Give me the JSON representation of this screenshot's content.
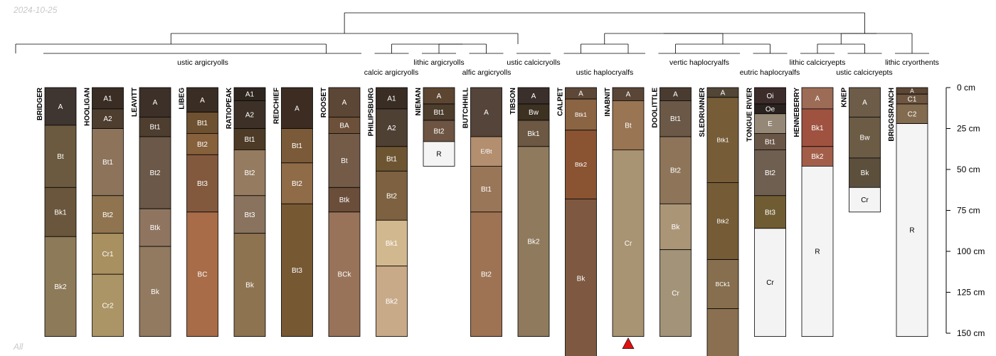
{
  "date": "2024-10-25",
  "footer": "All",
  "chart_data": {
    "type": "soil-profile-sketch",
    "y_axis": {
      "unit": "cm",
      "ticks": [
        0,
        25,
        50,
        75,
        100,
        125,
        150
      ],
      "tick_labels": [
        "0 cm",
        "25 cm",
        "50 cm",
        "75 cm",
        "100 cm",
        "125 cm",
        "150 cm"
      ]
    },
    "profiles": [
      {
        "name": "BRIDGER",
        "group": "ustic argicryolls",
        "horizons": [
          {
            "name": "A",
            "top": 0,
            "bottom": 23,
            "color": "#3f3531"
          },
          {
            "name": "Bt",
            "top": 23,
            "bottom": 61,
            "color": "#6c5a40"
          },
          {
            "name": "Bk1",
            "top": 61,
            "bottom": 91,
            "color": "#6a563c"
          },
          {
            "name": "Bk2",
            "top": 91,
            "bottom": 152,
            "color": "#8d7a59"
          }
        ]
      },
      {
        "name": "HOOLIGAN",
        "group": "ustic argicryolls",
        "horizons": [
          {
            "name": "A1",
            "top": 0,
            "bottom": 13,
            "color": "#3a2d24"
          },
          {
            "name": "A2",
            "top": 13,
            "bottom": 25,
            "color": "#4e3e30"
          },
          {
            "name": "Bt1",
            "top": 25,
            "bottom": 66,
            "color": "#8c735a"
          },
          {
            "name": "Bt2",
            "top": 66,
            "bottom": 89,
            "color": "#8f744f"
          },
          {
            "name": "Cr1",
            "top": 89,
            "bottom": 114,
            "color": "#a99060"
          },
          {
            "name": "Cr2",
            "top": 114,
            "bottom": 152,
            "color": "#ab9566"
          }
        ]
      },
      {
        "name": "LEAVITT",
        "group": "ustic argicryolls",
        "horizons": [
          {
            "name": "A",
            "top": 0,
            "bottom": 18,
            "color": "#3c3028"
          },
          {
            "name": "Bt1",
            "top": 18,
            "bottom": 30,
            "color": "#4e3e30"
          },
          {
            "name": "Bt2",
            "top": 30,
            "bottom": 74,
            "color": "#6b5848"
          },
          {
            "name": "Btk",
            "top": 74,
            "bottom": 97,
            "color": "#8f7560"
          },
          {
            "name": "Bk",
            "top": 97,
            "bottom": 152,
            "color": "#927a61"
          }
        ]
      },
      {
        "name": "LIBEG",
        "group": "ustic argicryolls",
        "horizons": [
          {
            "name": "A",
            "top": 0,
            "bottom": 15,
            "color": "#3a2d24"
          },
          {
            "name": "Bt1",
            "top": 15,
            "bottom": 28,
            "color": "#6e5131"
          },
          {
            "name": "Bt2",
            "top": 28,
            "bottom": 41,
            "color": "#87603c"
          },
          {
            "name": "Bt3",
            "top": 41,
            "bottom": 76,
            "color": "#83593e"
          },
          {
            "name": "BC",
            "top": 76,
            "bottom": 152,
            "color": "#a86c48"
          }
        ]
      },
      {
        "name": "RATIOPEAK",
        "group": "ustic argicryolls",
        "horizons": [
          {
            "name": "A1",
            "top": 0,
            "bottom": 8,
            "color": "#2f2620"
          },
          {
            "name": "A2",
            "top": 8,
            "bottom": 25,
            "color": "#3d3127"
          },
          {
            "name": "Bt1",
            "top": 25,
            "bottom": 38,
            "color": "#4d3b27"
          },
          {
            "name": "Bt2",
            "top": 38,
            "bottom": 66,
            "color": "#957b60"
          },
          {
            "name": "Bt3",
            "top": 66,
            "bottom": 89,
            "color": "#89735e"
          },
          {
            "name": "Bk",
            "top": 89,
            "bottom": 152,
            "color": "#8d7350"
          }
        ]
      },
      {
        "name": "REDCHIEF",
        "group": "ustic argicryolls",
        "horizons": [
          {
            "name": "A",
            "top": 0,
            "bottom": 25,
            "color": "#3c2c22"
          },
          {
            "name": "Bt1",
            "top": 25,
            "bottom": 46,
            "color": "#7a5a38"
          },
          {
            "name": "Bt2",
            "top": 46,
            "bottom": 71,
            "color": "#8f6b48"
          },
          {
            "name": "Bt3",
            "top": 71,
            "bottom": 152,
            "color": "#765833"
          }
        ]
      },
      {
        "name": "ROOSET",
        "group": "ustic argicryolls",
        "horizons": [
          {
            "name": "A",
            "top": 0,
            "bottom": 18,
            "color": "#5c4635"
          },
          {
            "name": "BA",
            "top": 18,
            "bottom": 28,
            "color": "#6c5039"
          },
          {
            "name": "Bt",
            "top": 28,
            "bottom": 61,
            "color": "#735b48"
          },
          {
            "name": "Btk",
            "top": 61,
            "bottom": 76,
            "color": "#6a4e3a"
          },
          {
            "name": "BCk",
            "top": 76,
            "bottom": 152,
            "color": "#98735a"
          }
        ]
      },
      {
        "name": "PHILIPSBURG",
        "group": "calcic argicryolls",
        "horizons": [
          {
            "name": "A1",
            "top": 0,
            "bottom": 13,
            "color": "#3a2d24"
          },
          {
            "name": "A2",
            "top": 13,
            "bottom": 36,
            "color": "#4e4033"
          },
          {
            "name": "Bt1",
            "top": 36,
            "bottom": 51,
            "color": "#6e5532"
          },
          {
            "name": "Bt2",
            "top": 51,
            "bottom": 81,
            "color": "#7d6140"
          },
          {
            "name": "Bk1",
            "top": 81,
            "bottom": 109,
            "color": "#d2b88f"
          },
          {
            "name": "Bk2",
            "top": 109,
            "bottom": 152,
            "color": "#c8aa88"
          }
        ]
      },
      {
        "name": "NIEMAN",
        "group": "lithic argicryolls",
        "horizons": [
          {
            "name": "A",
            "top": 0,
            "bottom": 10,
            "color": "#5c4632"
          },
          {
            "name": "Bt1",
            "top": 10,
            "bottom": 20,
            "color": "#4d3d2d"
          },
          {
            "name": "Bt2",
            "top": 20,
            "bottom": 33,
            "color": "#6e5442"
          },
          {
            "name": "R",
            "top": 33,
            "bottom": 48,
            "color": "#f4f4f4"
          }
        ]
      },
      {
        "name": "BUTCHHILL",
        "group": "alfic argicryolls",
        "horizons": [
          {
            "name": "A",
            "top": 0,
            "bottom": 30,
            "color": "#54443a"
          },
          {
            "name": "E/Bt",
            "top": 30,
            "bottom": 48,
            "color": "#b38e6f"
          },
          {
            "name": "Bt1",
            "top": 48,
            "bottom": 76,
            "color": "#9a7658"
          },
          {
            "name": "Bt2",
            "top": 76,
            "bottom": 152,
            "color": "#9d7353"
          }
        ]
      },
      {
        "name": "TIBSON",
        "group": "ustic calcicryolls",
        "horizons": [
          {
            "name": "A",
            "top": 0,
            "bottom": 10,
            "color": "#3a2f2a"
          },
          {
            "name": "Bw",
            "top": 10,
            "bottom": 20,
            "color": "#3d3122"
          },
          {
            "name": "Bk1",
            "top": 20,
            "bottom": 36,
            "color": "#6c5843"
          },
          {
            "name": "Bk2",
            "top": 36,
            "bottom": 152,
            "color": "#8f7a5d"
          }
        ]
      },
      {
        "name": "CALPET",
        "group": "ustic haplocryalfs",
        "horizons": [
          {
            "name": "A",
            "top": 0,
            "bottom": 7,
            "color": "#5d4837"
          },
          {
            "name": "Btk1",
            "top": 7,
            "bottom": 26,
            "color": "#8b6444"
          },
          {
            "name": "Btk2",
            "top": 26,
            "bottom": 68,
            "color": "#8a5332"
          },
          {
            "name": "Bk",
            "top": 68,
            "bottom": 165,
            "color": "#7e5841"
          }
        ]
      },
      {
        "name": "INABNIT",
        "group": "ustic haplocryalfs",
        "marker": "triangle",
        "horizons": [
          {
            "name": "A",
            "top": 0,
            "bottom": 8,
            "color": "#5a4636"
          },
          {
            "name": "Bt",
            "top": 8,
            "bottom": 38,
            "color": "#997553"
          },
          {
            "name": "Cr",
            "top": 38,
            "bottom": 152,
            "color": "#a89372"
          }
        ]
      },
      {
        "name": "DOOLITTLE",
        "group": "vertic haplocryalfs",
        "horizons": [
          {
            "name": "A",
            "top": 0,
            "bottom": 8,
            "color": "#4a3b31"
          },
          {
            "name": "Bt1",
            "top": 8,
            "bottom": 30,
            "color": "#6b5847"
          },
          {
            "name": "Bt2",
            "top": 30,
            "bottom": 71,
            "color": "#8e755a"
          },
          {
            "name": "Bk",
            "top": 71,
            "bottom": 99,
            "color": "#ab9577"
          },
          {
            "name": "Cr",
            "top": 99,
            "bottom": 152,
            "color": "#a39479"
          }
        ]
      },
      {
        "name": "SLEDRUNNER",
        "group": "vertic haplocryalfs",
        "horizons": [
          {
            "name": "A",
            "top": 0,
            "bottom": 6,
            "color": "#524637"
          },
          {
            "name": "Btk1",
            "top": 6,
            "bottom": 58,
            "color": "#765d38"
          },
          {
            "name": "Btk2",
            "top": 58,
            "bottom": 105,
            "color": "#755c36"
          },
          {
            "name": "BCk1",
            "top": 105,
            "bottom": 135,
            "color": "#866e4e"
          },
          {
            "name": "",
            "top": 135,
            "bottom": 165,
            "color": "#8a7050"
          }
        ]
      },
      {
        "name": "TONGUE RIVER",
        "group": "eutric haplocryalfs",
        "horizons": [
          {
            "name": "Oi",
            "top": 0,
            "bottom": 10,
            "color": "#3c2c2a"
          },
          {
            "name": "Oe",
            "top": 10,
            "bottom": 16,
            "color": "#2a221f"
          },
          {
            "name": "E",
            "top": 16,
            "bottom": 28,
            "color": "#968876"
          },
          {
            "name": "Bt1",
            "top": 28,
            "bottom": 38,
            "color": "#6a5646"
          },
          {
            "name": "Bt2",
            "top": 38,
            "bottom": 66,
            "color": "#6f5f50"
          },
          {
            "name": "Bt3",
            "top": 66,
            "bottom": 86,
            "color": "#705c33"
          },
          {
            "name": "Cr",
            "top": 86,
            "bottom": 152,
            "color": "#f3f3f3"
          }
        ]
      },
      {
        "name": "HENNEBERRY",
        "group": "lithic calcicryepts",
        "horizons": [
          {
            "name": "A",
            "top": 0,
            "bottom": 13,
            "color": "#9d6c56"
          },
          {
            "name": "Bk1",
            "top": 13,
            "bottom": 36,
            "color": "#9f5240"
          },
          {
            "name": "Bk2",
            "top": 36,
            "bottom": 48,
            "color": "#a35e4a"
          },
          {
            "name": "R",
            "top": 48,
            "bottom": 152,
            "color": "#f4f4f4"
          }
        ]
      },
      {
        "name": "KNEP",
        "group": "ustic calcicryepts",
        "horizons": [
          {
            "name": "A",
            "top": 0,
            "bottom": 18,
            "color": "#6d5c48"
          },
          {
            "name": "Bw",
            "top": 18,
            "bottom": 43,
            "color": "#6c5c46"
          },
          {
            "name": "Bk",
            "top": 43,
            "bottom": 61,
            "color": "#5c4f3c"
          },
          {
            "name": "Cr",
            "top": 61,
            "bottom": 76,
            "color": "#f4f4f4"
          }
        ]
      },
      {
        "name": "BRIGGSRANCH",
        "group": "lithic cryorthents",
        "horizons": [
          {
            "name": "A",
            "top": 0,
            "bottom": 4,
            "color": "#5c4634"
          },
          {
            "name": "C1",
            "top": 4,
            "bottom": 10,
            "color": "#6e5640"
          },
          {
            "name": "C2",
            "top": 10,
            "bottom": 22,
            "color": "#836b4f"
          },
          {
            "name": "R",
            "top": 22,
            "bottom": 152,
            "color": "#f4f4f4"
          }
        ]
      }
    ],
    "groups": [
      "ustic argicryolls",
      "calcic argicryolls",
      "lithic argicryolls",
      "alfic argicryolls",
      "ustic calcicryolls",
      "ustic haplocryalfs",
      "vertic haplocryalfs",
      "eutric haplocryalfs",
      "lithic calcicryepts",
      "ustic calcicryepts",
      "lithic cryorthents"
    ],
    "dendrogram_merges": [
      [
        "BRIDGER",
        "REDCHIEF"
      ],
      [
        "NIEMAN",
        "BUTCHHILL"
      ],
      [
        "PHILIPSBURG",
        "NIEMAN-BUTCHHILL"
      ],
      [
        "BRIDGER-REDCHIEF",
        "PHILIPSBURG-BUTCHHILL"
      ],
      [
        "CALPET",
        "INABNIT"
      ],
      [
        "DOOLITTLE",
        "TONGUE RIVER"
      ],
      [
        "CALPET-INABNIT",
        "DOOLITTLE-TONGUE RIVER"
      ],
      [
        "HENNEBERRY",
        "KNEP"
      ],
      [
        "HENNEBERRY-KNEP",
        "BRIGGSRANCH"
      ],
      [
        "CALPET-TONGUE RIVER",
        "HENNEBERRY-BRIGGSRANCH"
      ],
      [
        "BRIDGER-BUTCHHILL",
        "CALPET-BRIGGSRANCH"
      ]
    ],
    "marker_color": "#e01010"
  }
}
